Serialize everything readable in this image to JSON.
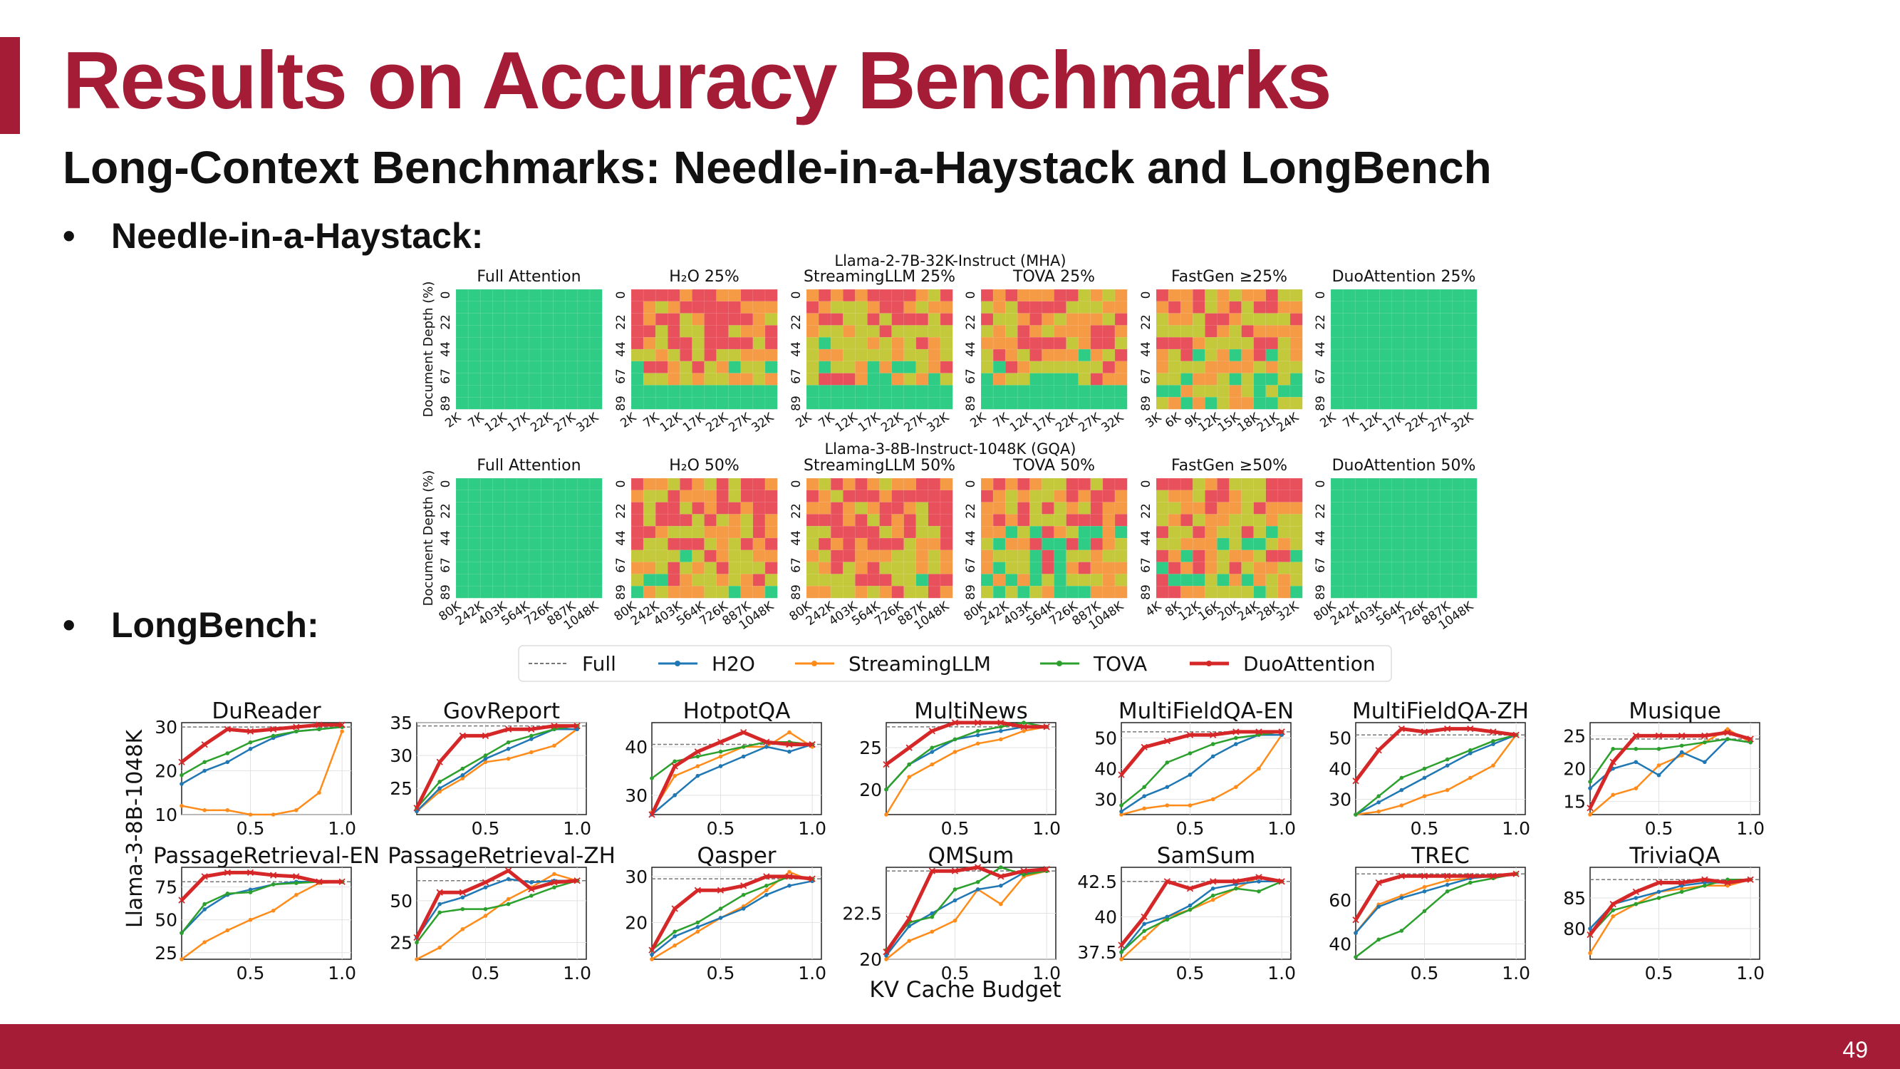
{
  "slide": {
    "title": "Results on Accuracy Benchmarks",
    "subtitle": "Long-Context Benchmarks: Needle-in-a-Haystack and LongBench",
    "bullets": [
      "Needle-in-a-Haystack:",
      "LongBench:"
    ],
    "page_number": "49",
    "colors": {
      "accent": "#A51C36",
      "footer": "#A51C36"
    }
  },
  "chart_data": [
    {
      "type": "heatmap",
      "title": "Llama-2-7B-32K-Instruct (MHA)",
      "ylabel": "Document Depth (%)",
      "y_ticks": [
        "0",
        "22",
        "44",
        "67",
        "89"
      ],
      "colorscale": [
        "#E8505B",
        "#F59A45",
        "#C3C93A",
        "#2FCC85"
      ],
      "grid": [
        10,
        12
      ],
      "panels": [
        {
          "title": "Full Attention",
          "x_ticks": [
            "2K",
            "7K",
            "12K",
            "17K",
            "22K",
            "27K",
            "32K"
          ],
          "pass_rate": 1.0
        },
        {
          "title": "H₂O 25%",
          "x_ticks": [
            "2K",
            "7K",
            "12K",
            "17K",
            "22K",
            "27K",
            "32K"
          ],
          "pass_rate": 0.2
        },
        {
          "title": "StreamingLLM 25%",
          "x_ticks": [
            "2K",
            "7K",
            "12K",
            "17K",
            "22K",
            "27K",
            "32K"
          ],
          "pass_rate": 0.3
        },
        {
          "title": "TOVA 25%",
          "x_ticks": [
            "2K",
            "7K",
            "12K",
            "17K",
            "22K",
            "27K",
            "32K"
          ],
          "pass_rate": 0.35
        },
        {
          "title": "FastGen ≥25%",
          "x_ticks": [
            "3K",
            "6K",
            "9K",
            "12K",
            "15K",
            "18K",
            "21K",
            "24K"
          ],
          "pass_rate": 0.4
        },
        {
          "title": "DuoAttention 25%",
          "x_ticks": [
            "2K",
            "7K",
            "12K",
            "17K",
            "22K",
            "27K",
            "32K"
          ],
          "pass_rate": 1.0
        }
      ]
    },
    {
      "type": "heatmap",
      "title": "Llama-3-8B-Instruct-1048K (GQA)",
      "ylabel": "Document Depth (%)",
      "y_ticks": [
        "0",
        "22",
        "44",
        "67",
        "89"
      ],
      "colorscale": [
        "#E8505B",
        "#F59A45",
        "#C3C93A",
        "#2FCC85"
      ],
      "grid": [
        10,
        12
      ],
      "panels": [
        {
          "title": "Full Attention",
          "x_ticks": [
            "80K",
            "242K",
            "403K",
            "564K",
            "726K",
            "887K",
            "1048K"
          ],
          "pass_rate": 1.0
        },
        {
          "title": "H₂O 50%",
          "x_ticks": [
            "80K",
            "242K",
            "403K",
            "564K",
            "726K",
            "887K",
            "1048K"
          ],
          "pass_rate": 0.4
        },
        {
          "title": "StreamingLLM 50%",
          "x_ticks": [
            "80K",
            "242K",
            "403K",
            "564K",
            "726K",
            "887K",
            "1048K"
          ],
          "pass_rate": 0.25
        },
        {
          "title": "TOVA 50%",
          "x_ticks": [
            "80K",
            "242K",
            "403K",
            "564K",
            "726K",
            "887K",
            "1048K"
          ],
          "pass_rate": 0.55
        },
        {
          "title": "FastGen ≥50%",
          "x_ticks": [
            "4K",
            "8K",
            "12K",
            "16K",
            "20K",
            "24K",
            "28K",
            "32K"
          ],
          "pass_rate": 0.45
        },
        {
          "title": "DuoAttention 50%",
          "x_ticks": [
            "80K",
            "242K",
            "403K",
            "564K",
            "726K",
            "887K",
            "1048K"
          ],
          "pass_rate": 1.0
        }
      ]
    },
    {
      "type": "line",
      "row_label": "Llama-3-8B-1048K",
      "xlabel": "KV Cache Budget",
      "x": [
        0.125,
        0.25,
        0.375,
        0.5,
        0.625,
        0.75,
        0.875,
        1.0
      ],
      "x_ticks": [
        "0.5",
        "1.0"
      ],
      "legend": {
        "placement": "top-center",
        "entries": [
          "Full",
          "H2O",
          "StreamingLLM",
          "TOVA",
          "DuoAttention"
        ]
      },
      "series_colors": {
        "H2O": "#1F77B4",
        "StreamingLLM": "#FF8C1A",
        "TOVA": "#2CA02C",
        "DuoAttention": "#D62728",
        "Full": "#777777"
      },
      "panels": [
        {
          "title": "DuReader",
          "ylim": [
            10,
            31
          ],
          "yticks": [
            10,
            20,
            30
          ],
          "full": 30,
          "series": {
            "H2O": [
              17,
              20,
              22,
              25,
              27.5,
              29,
              29.5,
              30
            ],
            "StreamingLLM": [
              12,
              11,
              11,
              10,
              10,
              11,
              15,
              29
            ],
            "TOVA": [
              19,
              22,
              24,
              26.5,
              28,
              29,
              29.5,
              30
            ],
            "DuoAttention": [
              22,
              26,
              29.5,
              29,
              29.5,
              30,
              30.5,
              30.5
            ]
          }
        },
        {
          "title": "GovReport",
          "ylim": [
            21,
            35
          ],
          "yticks": [
            25,
            30,
            35
          ],
          "full": 34.5,
          "series": {
            "H2O": [
              21.5,
              25,
              27,
              29.5,
              31,
              32.5,
              34,
              34
            ],
            "StreamingLLM": [
              21.5,
              24.5,
              26.5,
              29,
              29.5,
              30.5,
              31.5,
              34
            ],
            "TOVA": [
              22,
              26,
              28,
              30,
              32,
              33,
              34,
              34.5
            ],
            "DuoAttention": [
              22,
              29,
              33,
              33,
              34,
              34,
              34.5,
              34.5
            ]
          }
        },
        {
          "title": "HotpotQA",
          "ylim": [
            26,
            45
          ],
          "yticks": [
            30,
            40
          ],
          "full": 40.5,
          "series": {
            "H2O": [
              26,
              30,
              34,
              36,
              38,
              40,
              39,
              40.5
            ],
            "StreamingLLM": [
              26.5,
              34,
              36,
              38,
              40,
              40,
              43,
              40
            ],
            "TOVA": [
              33.5,
              37,
              38,
              39,
              40,
              41,
              41,
              40.5
            ],
            "DuoAttention": [
              26,
              36,
              39,
              41,
              43,
              41,
              40.5,
              40.5
            ]
          }
        },
        {
          "title": "MultiNews",
          "ylim": [
            17,
            28
          ],
          "yticks": [
            20,
            25
          ],
          "full": 27.5,
          "series": {
            "H2O": [
              20,
              23,
              24.5,
              26,
              26.5,
              27,
              27.5,
              27.5
            ],
            "StreamingLLM": [
              17,
              21.5,
              23,
              24.5,
              25.5,
              26,
              27,
              27.5
            ],
            "TOVA": [
              20,
              23,
              25,
              26,
              27,
              27.5,
              28,
              27.5
            ],
            "DuoAttention": [
              23,
              25,
              27,
              28,
              28,
              28,
              27.5,
              27.5
            ]
          }
        },
        {
          "title": "MultiFieldQA-EN",
          "ylim": [
            25,
            55
          ],
          "yticks": [
            30,
            40,
            50
          ],
          "full": 52,
          "series": {
            "H2O": [
              26,
              31,
              34,
              38,
              44,
              48,
              51,
              51
            ],
            "StreamingLLM": [
              25,
              27,
              28,
              28,
              30,
              34,
              40,
              51
            ],
            "TOVA": [
              28,
              34,
              42,
              45,
              48,
              50,
              51,
              52
            ],
            "DuoAttention": [
              38,
              47,
              49,
              51,
              51,
              52,
              52,
              52
            ]
          }
        },
        {
          "title": "MultiFieldQA-ZH",
          "ylim": [
            25,
            55
          ],
          "yticks": [
            30,
            40,
            50
          ],
          "full": 51,
          "series": {
            "H2O": [
              25,
              29,
              33,
              37,
              41,
              45,
              48,
              51
            ],
            "StreamingLLM": [
              25,
              26,
              28,
              31,
              33,
              37,
              41,
              51
            ],
            "TOVA": [
              25,
              31,
              37,
              40,
              43,
              46,
              49,
              51
            ],
            "DuoAttention": [
              36,
              46,
              53,
              52,
              53,
              53,
              52,
              51
            ]
          }
        },
        {
          "title": "Musique",
          "ylim": [
            13,
            27
          ],
          "yticks": [
            15,
            20,
            25
          ],
          "full": 24.5,
          "series": {
            "H2O": [
              17,
              20,
              21,
              19,
              22.5,
              21,
              24.5,
              24
            ],
            "StreamingLLM": [
              13,
              16,
              17,
              20.5,
              22,
              24,
              26,
              24
            ],
            "TOVA": [
              18,
              23,
              23,
              23,
              23.5,
              24,
              24.5,
              24
            ],
            "DuoAttention": [
              14,
              21,
              25,
              25,
              25,
              25,
              25.5,
              24.5
            ]
          }
        },
        {
          "title": "PassageRetrieval-EN",
          "ylim": [
            20,
            90
          ],
          "yticks": [
            25,
            50,
            75
          ],
          "full": 79,
          "series": {
            "H2O": [
              40,
              58,
              69,
              73,
              77,
              79,
              79,
              79
            ],
            "StreamingLLM": [
              20,
              33,
              42,
              50,
              57,
              69,
              78,
              79
            ],
            "TOVA": [
              40,
              62,
              70,
              71,
              77,
              78,
              79,
              79
            ],
            "DuoAttention": [
              65,
              83,
              86,
              86,
              84,
              83,
              79,
              79
            ]
          }
        },
        {
          "title": "PassageRetrieval-ZH",
          "ylim": [
            15,
            70
          ],
          "yticks": [
            25,
            50
          ],
          "full": 62,
          "series": {
            "H2O": [
              28,
              48,
              52,
              58,
              63,
              61,
              62,
              62
            ],
            "StreamingLLM": [
              15,
              22,
              33,
              41,
              51,
              58,
              66,
              62
            ],
            "TOVA": [
              25,
              43,
              45,
              45,
              48,
              53,
              58,
              62
            ],
            "DuoAttention": [
              28,
              55,
              55,
              61,
              68,
              57,
              61,
              62
            ]
          }
        },
        {
          "title": "Qasper",
          "ylim": [
            12,
            32
          ],
          "yticks": [
            20,
            30
          ],
          "full": 29.5,
          "series": {
            "H2O": [
              13,
              17,
              19,
              21,
              23,
              26,
              28,
              29
            ],
            "StreamingLLM": [
              12,
              15,
              18,
              21,
              23.5,
              27,
              31,
              29
            ],
            "TOVA": [
              14,
              18,
              20,
              23,
              26,
              28,
              30,
              29.5
            ],
            "DuoAttention": [
              14,
              23,
              27,
              27,
              28,
              30,
              30,
              29.5
            ]
          }
        },
        {
          "title": "QMSum",
          "ylim": [
            20,
            25
          ],
          "yticks": [
            20.0,
            22.5
          ],
          "full": 24.8,
          "series": {
            "H2O": [
              20.2,
              21.8,
              22.5,
              23.2,
              23.8,
              24.0,
              24.7,
              24.8
            ],
            "StreamingLLM": [
              20,
              21,
              21.5,
              22.1,
              23.8,
              23,
              24.5,
              24.8
            ],
            "TOVA": [
              20.5,
              22,
              22.3,
              23.8,
              24.2,
              25,
              24.6,
              24.8
            ],
            "DuoAttention": [
              20.4,
              22.2,
              24.8,
              24.8,
              25,
              24.5,
              24.8,
              24.9
            ]
          }
        },
        {
          "title": "SamSum",
          "ylim": [
            37,
            43.5
          ],
          "yticks": [
            37.5,
            40.0,
            42.5
          ],
          "full": 42.5,
          "series": {
            "H2O": [
              37.5,
              39.5,
              40,
              40.8,
              42,
              42.3,
              42.5,
              42.5
            ],
            "StreamingLLM": [
              37,
              38.5,
              40,
              40.5,
              41.2,
              42,
              42.8,
              42.5
            ],
            "TOVA": [
              37.5,
              39,
              39.8,
              40.5,
              41.5,
              42,
              41.8,
              42.5
            ],
            "DuoAttention": [
              38,
              40,
              42.5,
              42,
              42.5,
              42.5,
              42.8,
              42.5
            ]
          }
        },
        {
          "title": "TREC",
          "ylim": [
            33,
            75
          ],
          "yticks": [
            40,
            60
          ],
          "full": 72,
          "series": {
            "H2O": [
              45,
              57,
              61,
              64,
              67,
              70,
              71,
              72
            ],
            "StreamingLLM": [
              45,
              58,
              62,
              66,
              69,
              70,
              71,
              72
            ],
            "TOVA": [
              34,
              42,
              46,
              55,
              64,
              68,
              70,
              72
            ],
            "DuoAttention": [
              51,
              68,
              71,
              71,
              71,
              71,
              71,
              72
            ]
          }
        },
        {
          "title": "TriviaQA",
          "ylim": [
            75,
            90
          ],
          "yticks": [
            80,
            85
          ],
          "full": 88,
          "series": {
            "H2O": [
              80,
              84,
              85,
              86,
              87,
              87.5,
              87.5,
              88
            ],
            "StreamingLLM": [
              76,
              82,
              84,
              86,
              86.5,
              87,
              87,
              88
            ],
            "TOVA": [
              79,
              83,
              84,
              85,
              86,
              87,
              88,
              88
            ],
            "DuoAttention": [
              79,
              84,
              86,
              87.5,
              87.5,
              88,
              87.5,
              88
            ]
          }
        }
      ]
    }
  ]
}
